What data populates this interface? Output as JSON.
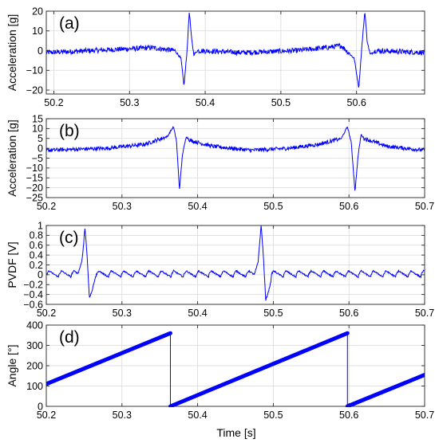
{
  "figure": {
    "xlabel": "Time [s]"
  },
  "chart_data": [
    {
      "type": "line",
      "panel_label": "(a)",
      "ylabel": "Acceleration [g]",
      "xlim": [
        50.19,
        50.69
      ],
      "ylim": [
        -22,
        20
      ],
      "xticks": [
        50.2,
        50.3,
        50.4,
        50.5,
        50.6
      ],
      "xtick_labels": [
        "50.2",
        "50.3",
        "50.4",
        "50.5",
        "50.6"
      ],
      "yticks": [
        -20,
        -10,
        0,
        10,
        20
      ],
      "ytick_labels": [
        "−20",
        "−10",
        "0",
        "10",
        "20"
      ],
      "grid": true,
      "color": "#0000ff",
      "series": [
        {
          "values": {
            "kind": "signal",
            "points": [
              [
                50.19,
                -1
              ],
              [
                50.25,
                0
              ],
              [
                50.33,
                1.5
              ],
              [
                50.36,
                0
              ],
              [
                50.368,
                -4
              ],
              [
                50.372,
                -18
              ],
              [
                50.376,
                0
              ],
              [
                50.379,
                20
              ],
              [
                50.382,
                6
              ],
              [
                50.385,
                -2
              ],
              [
                50.39,
                0
              ],
              [
                50.45,
                -1
              ],
              [
                50.52,
                0
              ],
              [
                50.56,
                1.5
              ],
              [
                50.58,
                2.5
              ],
              [
                50.597,
                -4
              ],
              [
                50.603,
                -19
              ],
              [
                50.607,
                2
              ],
              [
                50.611,
                20
              ],
              [
                50.614,
                5
              ],
              [
                50.618,
                -2
              ],
              [
                50.625,
                0
              ],
              [
                50.69,
                -1
              ]
            ],
            "noise": 1.3
          }
        }
      ]
    },
    {
      "type": "line",
      "panel_label": "(b)",
      "ylabel": "Acceleration [g]",
      "xlim": [
        50.2,
        50.7
      ],
      "ylim": [
        -25,
        15
      ],
      "xticks": [
        50.2,
        50.3,
        50.4,
        50.5,
        50.6,
        50.7
      ],
      "xtick_labels": [
        "50.2",
        "50.3",
        "50.4",
        "50.5",
        "50.6",
        "50.7"
      ],
      "yticks": [
        -25,
        -20,
        -15,
        -10,
        -5,
        0,
        5,
        10,
        15
      ],
      "ytick_labels": [
        "−25",
        "−20",
        "−15",
        "−10",
        "−5",
        "0",
        "5",
        "10",
        "15"
      ],
      "grid": true,
      "color": "#0000ff",
      "series": [
        {
          "values": {
            "kind": "signal",
            "points": [
              [
                50.2,
                -1
              ],
              [
                50.28,
                0
              ],
              [
                50.33,
                2
              ],
              [
                50.36,
                6
              ],
              [
                50.368,
                11
              ],
              [
                50.372,
                4
              ],
              [
                50.376,
                -21
              ],
              [
                50.38,
                -3
              ],
              [
                50.385,
                6
              ],
              [
                50.39,
                4
              ],
              [
                50.42,
                1
              ],
              [
                50.47,
                -1
              ],
              [
                50.52,
                0
              ],
              [
                50.56,
                2
              ],
              [
                50.59,
                5
              ],
              [
                50.598,
                11
              ],
              [
                50.603,
                3
              ],
              [
                50.608,
                -22
              ],
              [
                50.612,
                -4
              ],
              [
                50.616,
                7
              ],
              [
                50.62,
                5
              ],
              [
                50.65,
                1
              ],
              [
                50.7,
                -1
              ]
            ],
            "noise": 1.0
          }
        }
      ]
    },
    {
      "type": "line",
      "panel_label": "(c)",
      "ylabel": "PVDF [V]",
      "xlim": [
        50.2,
        50.7
      ],
      "ylim": [
        -0.6,
        1
      ],
      "xticks": [
        50.2,
        50.3,
        50.4,
        50.5,
        50.6,
        50.7
      ],
      "xtick_labels": [
        "50.2",
        "50.3",
        "50.4",
        "50.5",
        "50.6",
        "50.7"
      ],
      "yticks": [
        -0.6,
        -0.4,
        -0.2,
        0,
        0.2,
        0.4,
        0.6,
        0.8,
        1
      ],
      "ytick_labels": [
        "−0.6",
        "−0.4",
        "−0.2",
        "0",
        "0.2",
        "0.4",
        "0.6",
        "0.8",
        "1"
      ],
      "grid": true,
      "color": "#0000ff",
      "series": [
        {
          "values": {
            "kind": "pvdf",
            "ripple_period": 0.0165,
            "ripple_amp": 0.08,
            "points": [
              [
                50.2,
                0
              ],
              [
                50.242,
                0
              ],
              [
                50.247,
                0.3
              ],
              [
                50.251,
                0.92
              ],
              [
                50.254,
                0.3
              ],
              [
                50.257,
                -0.52
              ],
              [
                50.261,
                -0.3
              ],
              [
                50.265,
                0
              ],
              [
                50.475,
                0
              ],
              [
                50.48,
                0.3
              ],
              [
                50.484,
                0.93
              ],
              [
                50.487,
                0.3
              ],
              [
                50.49,
                -0.54
              ],
              [
                50.494,
                -0.3
              ],
              [
                50.498,
                0
              ],
              [
                50.7,
                0
              ]
            ]
          }
        }
      ]
    },
    {
      "type": "line",
      "panel_label": "(d)",
      "ylabel": "Angle [°]",
      "xlim": [
        50.2,
        50.7
      ],
      "ylim": [
        0,
        400
      ],
      "xticks": [
        50.2,
        50.3,
        50.4,
        50.5,
        50.6,
        50.7
      ],
      "xtick_labels": [
        "50.2",
        "50.3",
        "50.4",
        "50.5",
        "50.6",
        "50.7"
      ],
      "yticks": [
        0,
        100,
        200,
        300,
        400
      ],
      "ytick_labels": [
        "0",
        "100",
        "200",
        "300",
        "400"
      ],
      "grid": true,
      "color": "#0000ff",
      "series": [
        {
          "values": {
            "kind": "angle",
            "points": [
              [
                50.2,
                110
              ],
              [
                50.364,
                360
              ],
              [
                50.364,
                0
              ],
              [
                50.598,
                360
              ],
              [
                50.598,
                0
              ],
              [
                50.7,
                155
              ]
            ]
          }
        }
      ]
    }
  ]
}
